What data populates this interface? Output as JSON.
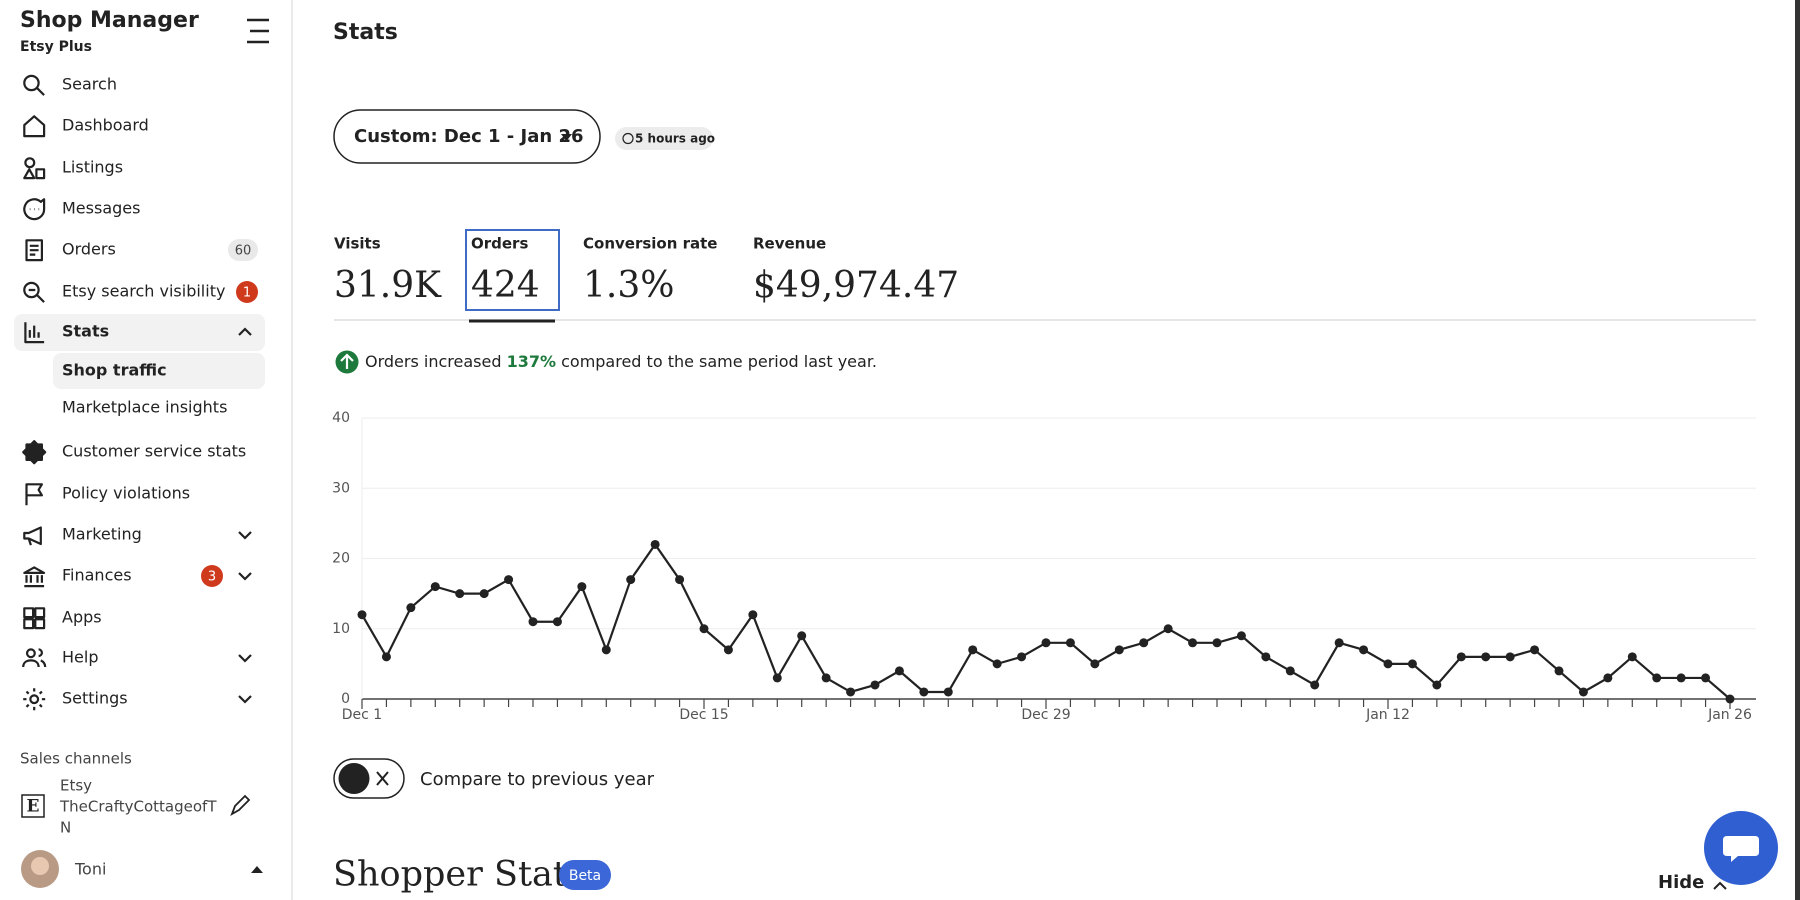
{
  "sidebar": {
    "title": "Shop Manager",
    "subtitle": "Etsy Plus",
    "nav": [
      {
        "label": "Search"
      },
      {
        "label": "Dashboard"
      },
      {
        "label": "Listings"
      },
      {
        "label": "Messages"
      },
      {
        "label": "Orders",
        "badge": 60,
        "badge_color": "#e9e9e9"
      },
      {
        "label": "Etsy search visibility",
        "badge": 1,
        "badge_color": "#cf3a1d"
      },
      {
        "label": "Stats",
        "expanded": true,
        "children": [
          "Shop traffic",
          "Marketplace insights"
        ]
      },
      {
        "label": "Customer service stats"
      },
      {
        "label": "Policy violations"
      },
      {
        "label": "Marketing",
        "expandable": true
      },
      {
        "label": "Finances",
        "badge": 3,
        "badge_color": "#cf3a1d",
        "expandable": true
      },
      {
        "label": "Apps"
      },
      {
        "label": "Help",
        "expandable": true
      },
      {
        "label": "Settings",
        "expandable": true
      }
    ],
    "sales_channels": {
      "heading": "Sales channels",
      "channel": "Etsy",
      "shop_line1": "TheCraftyCottageofT",
      "shop_line2": "N"
    },
    "user": "Toni"
  },
  "page": {
    "title": "Stats",
    "date_range": "Custom: Dec 1 - Jan 26",
    "updated": "5 hours ago",
    "metrics": [
      {
        "label": "Visits",
        "value": "31.9K"
      },
      {
        "label": "Orders",
        "value": "424"
      },
      {
        "label": "Conversion rate",
        "value": "1.3%"
      },
      {
        "label": "Revenue",
        "value": "$49,974.47"
      }
    ],
    "insight": {
      "prefix": "Orders increased ",
      "highlight": "137%",
      "suffix": " compared to the same period last year."
    },
    "compare_toggle": "Compare to previous year",
    "section_title": "Shopper Stats",
    "section_badge": "Beta",
    "hide": "Hide"
  },
  "chart_data": {
    "type": "line",
    "color": "#222222",
    "grid": true,
    "categories": [
      "Dec 1",
      null,
      null,
      null,
      null,
      null,
      null,
      null,
      null,
      null,
      null,
      null,
      null,
      null,
      "Dec 15",
      null,
      null,
      null,
      null,
      null,
      null,
      null,
      null,
      null,
      null,
      null,
      null,
      null,
      "Dec 29",
      null,
      null,
      null,
      null,
      null,
      null,
      null,
      null,
      null,
      null,
      null,
      null,
      null,
      "Jan 12",
      null,
      null,
      null,
      null,
      null,
      null,
      null,
      null,
      null,
      null,
      null,
      null,
      null,
      "Jan 26"
    ],
    "values": [
      12,
      6,
      13,
      16,
      15,
      15,
      17,
      11,
      11,
      16,
      7,
      17,
      22,
      17,
      10,
      7,
      12,
      3,
      9,
      3,
      1,
      2,
      4,
      1,
      1,
      7,
      5,
      6,
      8,
      8,
      5,
      7,
      8,
      10,
      8,
      8,
      9,
      6,
      4,
      2,
      8,
      7,
      5,
      5,
      2,
      6,
      6,
      6,
      7,
      4,
      1,
      3,
      6,
      3,
      3,
      3,
      0
    ],
    "ylim": [
      0,
      40
    ],
    "yticks": [
      0,
      10,
      20,
      30,
      40
    ]
  }
}
